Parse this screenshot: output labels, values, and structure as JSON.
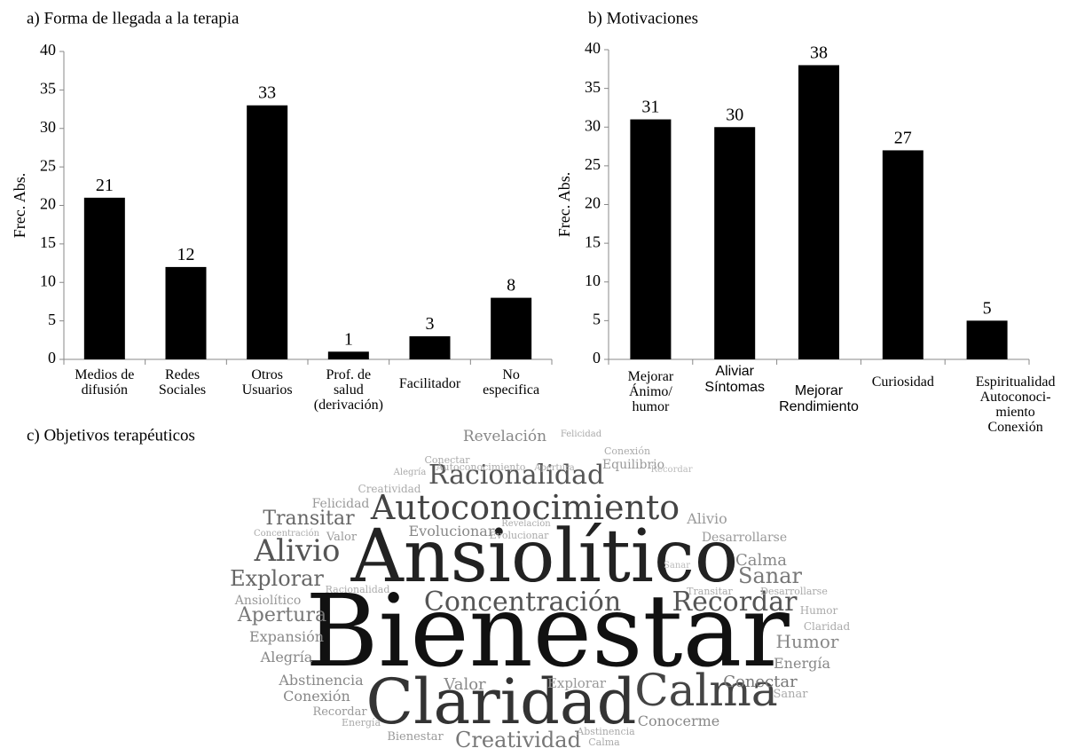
{
  "chart_data": [
    {
      "type": "bar",
      "title": "a) Forma de llegada a la terapia",
      "y_label": "Frec. Abs.",
      "categories": [
        "Medios de\ndifusión",
        "Redes\nSociales",
        "Otros\nUsuarios",
        "Prof. de\nsalud\n(derivación)",
        "Facilitador",
        "No\nespecifica"
      ],
      "values": [
        21,
        12,
        33,
        1,
        3,
        8
      ],
      "color": "#000000",
      "ylim": [
        0,
        40
      ],
      "yticks": [
        0,
        5,
        10,
        15,
        20,
        25,
        30,
        35,
        40
      ]
    },
    {
      "type": "bar",
      "title": "b) Motivaciones",
      "y_label": "Frec. Abs.",
      "categories": [
        "Mejorar\nÁnimo/\nhumor",
        "Aliviar\nSíntomas",
        "Mejorar\nRendimiento",
        "Curiosidad",
        "Espiritualidad\nAutoconoci-\nmiento\nConexión"
      ],
      "values": [
        31,
        30,
        38,
        27,
        5
      ],
      "color": "#000000",
      "ylim": [
        0,
        40
      ],
      "yticks": [
        0,
        5,
        10,
        15,
        20,
        25,
        30,
        35,
        40
      ]
    },
    {
      "type": "wordcloud",
      "title": "c) Objetivos terapéuticos",
      "words": [
        "Bienestar",
        "Ansiolítico",
        "Claridad",
        "Calma",
        "Autoconocimiento",
        "Racionalidad",
        "Concentración",
        "Recordar",
        "Alivio",
        "Explorar",
        "Transitar",
        "Apertura",
        "Sanar",
        "Calma",
        "Humor",
        "Energía",
        "Conectar",
        "Creatividad",
        "Revelación",
        "Evolucionar",
        "Alivio",
        "Desarrollarse",
        "Equilibrio",
        "Conexión",
        "Valor",
        "Felicidad",
        "Creatividad",
        "Concentración",
        "Alegría",
        "Expansión",
        "Ansiolítico",
        "Abstinencia",
        "Conexión",
        "Recordar",
        "Energía",
        "Bienestar",
        "Valor",
        "Explorar",
        "Conocerme",
        "Humor",
        "Claridad",
        "Sanar",
        "Racionalidad",
        "Desarrollarse",
        "Transitar",
        "Autoconocimiento",
        "Conectar",
        "Felicidad",
        "Alegría",
        "Apertura",
        "Recordar",
        "Evolucionar",
        "Revelación",
        "Abstinencia",
        "Calma",
        "Sanar"
      ]
    }
  ]
}
